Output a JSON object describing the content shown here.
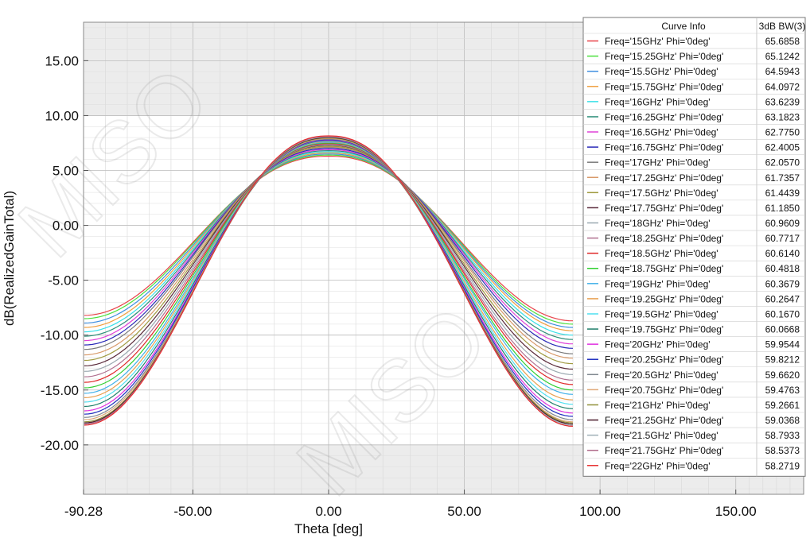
{
  "chart_data": {
    "type": "line",
    "title": "",
    "xlabel": "Theta [deg]",
    "ylabel": "dB(RealizedGainTotal)",
    "xlim": [
      -90.28,
      175
    ],
    "ylim": [
      -24.5,
      18.5
    ],
    "x_ticks": [
      "-90.28",
      "-50.00",
      "0.00",
      "50.00",
      "100.00",
      "150.00"
    ],
    "x_tick_values": [
      -90.28,
      -50,
      0,
      50,
      100,
      150
    ],
    "y_ticks": [
      "15.00",
      "10.00",
      "5.00",
      "0.00",
      "-5.00",
      "-10.00",
      "-15.00",
      "-20.00"
    ],
    "y_tick_values": [
      15,
      10,
      5,
      0,
      -5,
      -10,
      -15,
      -20
    ],
    "grid": true,
    "data_x_range": [
      -90,
      90
    ],
    "legend": {
      "placement": "top-right",
      "header_curve": "Curve Info",
      "header_value": "3dB BW(3)"
    },
    "series": [
      {
        "name": "Freq='15GHz' Phi='0deg'",
        "bw": "65.6858",
        "color": "#e8434a",
        "peak": 6.3,
        "left_end": -8.2,
        "right_end": -8.7
      },
      {
        "name": "Freq='15.25GHz' Phi='0deg'",
        "bw": "65.1242",
        "color": "#4be03c",
        "peak": 6.4,
        "left_end": -8.5,
        "right_end": -9.0
      },
      {
        "name": "Freq='15.5GHz' Phi='0deg'",
        "bw": "64.5943",
        "color": "#3f8fe0",
        "peak": 6.5,
        "left_end": -8.9,
        "right_end": -9.3
      },
      {
        "name": "Freq='15.75GHz' Phi='0deg'",
        "bw": "64.0972",
        "color": "#f0a040",
        "peak": 6.6,
        "left_end": -9.3,
        "right_end": -9.6
      },
      {
        "name": "Freq='16GHz' Phi='0deg'",
        "bw": "63.6239",
        "color": "#38e0e8",
        "peak": 6.7,
        "left_end": -9.7,
        "right_end": -10.0
      },
      {
        "name": "Freq='16.25GHz' Phi='0deg'",
        "bw": "63.1823",
        "color": "#2f8f7a",
        "peak": 6.8,
        "left_end": -10.1,
        "right_end": -10.4
      },
      {
        "name": "Freq='16.5GHz' Phi='0deg'",
        "bw": "62.7750",
        "color": "#e040d8",
        "peak": 6.9,
        "left_end": -10.5,
        "right_end": -10.8
      },
      {
        "name": "Freq='16.75GHz' Phi='0deg'",
        "bw": "62.4005",
        "color": "#2a2ab8",
        "peak": 7.0,
        "left_end": -10.9,
        "right_end": -11.2
      },
      {
        "name": "Freq='17GHz' Phi='0deg'",
        "bw": "62.0570",
        "color": "#7a7a7a",
        "peak": 7.1,
        "left_end": -11.3,
        "right_end": -11.7
      },
      {
        "name": "Freq='17.25GHz' Phi='0deg'",
        "bw": "61.7357",
        "color": "#d89a6a",
        "peak": 7.15,
        "left_end": -11.8,
        "right_end": -12.1
      },
      {
        "name": "Freq='17.5GHz' Phi='0deg'",
        "bw": "61.4439",
        "color": "#a09a40",
        "peak": 7.2,
        "left_end": -12.3,
        "right_end": -12.6
      },
      {
        "name": "Freq='17.75GHz' Phi='0deg'",
        "bw": "61.1850",
        "color": "#5a2a3a",
        "peak": 7.3,
        "left_end": -12.8,
        "right_end": -13.1
      },
      {
        "name": "Freq='18GHz' Phi='0deg'",
        "bw": "60.9609",
        "color": "#9aa8b0",
        "peak": 7.35,
        "left_end": -13.3,
        "right_end": -13.6
      },
      {
        "name": "Freq='18.25GHz' Phi='0deg'",
        "bw": "60.7717",
        "color": "#b07090",
        "peak": 7.4,
        "left_end": -13.8,
        "right_end": -14.1
      },
      {
        "name": "Freq='18.5GHz' Phi='0deg'",
        "bw": "60.6140",
        "color": "#e02828",
        "peak": 7.45,
        "left_end": -14.3,
        "right_end": -14.5
      },
      {
        "name": "Freq='18.75GHz' Phi='0deg'",
        "bw": "60.4818",
        "color": "#30d030",
        "peak": 7.5,
        "left_end": -14.8,
        "right_end": -15.0
      },
      {
        "name": "Freq='19GHz' Phi='0deg'",
        "bw": "60.3679",
        "color": "#40b0e8",
        "peak": 7.55,
        "left_end": -15.3,
        "right_end": -15.4
      },
      {
        "name": "Freq='19.25GHz' Phi='0deg'",
        "bw": "60.2647",
        "color": "#e8a050",
        "peak": 7.6,
        "left_end": -15.7,
        "right_end": -15.9
      },
      {
        "name": "Freq='19.5GHz' Phi='0deg'",
        "bw": "60.1670",
        "color": "#50e0f0",
        "peak": 7.65,
        "left_end": -16.1,
        "right_end": -16.3
      },
      {
        "name": "Freq='19.75GHz' Phi='0deg'",
        "bw": "60.0668",
        "color": "#1f7f6a",
        "peak": 7.7,
        "left_end": -16.5,
        "right_end": -16.7
      },
      {
        "name": "Freq='20GHz' Phi='0deg'",
        "bw": "59.9544",
        "color": "#e030e0",
        "peak": 7.75,
        "left_end": -16.9,
        "right_end": -17.1
      },
      {
        "name": "Freq='20.25GHz' Phi='0deg'",
        "bw": "59.8212",
        "color": "#2030c0",
        "peak": 7.8,
        "left_end": -17.2,
        "right_end": -17.4
      },
      {
        "name": "Freq='20.5GHz' Phi='0deg'",
        "bw": "59.6620",
        "color": "#808890",
        "peak": 7.85,
        "left_end": -17.5,
        "right_end": -17.7
      },
      {
        "name": "Freq='20.75GHz' Phi='0deg'",
        "bw": "59.4763",
        "color": "#e0a878",
        "peak": 7.9,
        "left_end": -17.7,
        "right_end": -17.9
      },
      {
        "name": "Freq='21GHz' Phi='0deg'",
        "bw": "59.2661",
        "color": "#909038",
        "peak": 7.95,
        "left_end": -17.9,
        "right_end": -18.0
      },
      {
        "name": "Freq='21.25GHz' Phi='0deg'",
        "bw": "59.0368",
        "color": "#4a1a2a",
        "peak": 8.0,
        "left_end": -18.0,
        "right_end": -18.1
      },
      {
        "name": "Freq='21.5GHz' Phi='0deg'",
        "bw": "58.7933",
        "color": "#a0b0b8",
        "peak": 8.05,
        "left_end": -18.1,
        "right_end": -18.2
      },
      {
        "name": "Freq='21.75GHz' Phi='0deg'",
        "bw": "58.5373",
        "color": "#b06a8a",
        "peak": 8.1,
        "left_end": -18.1,
        "right_end": -18.3
      },
      {
        "name": "Freq='22GHz' Phi='0deg'",
        "bw": "58.2719",
        "color": "#e83030",
        "peak": 8.15,
        "left_end": -18.2,
        "right_end": -18.3
      }
    ]
  }
}
